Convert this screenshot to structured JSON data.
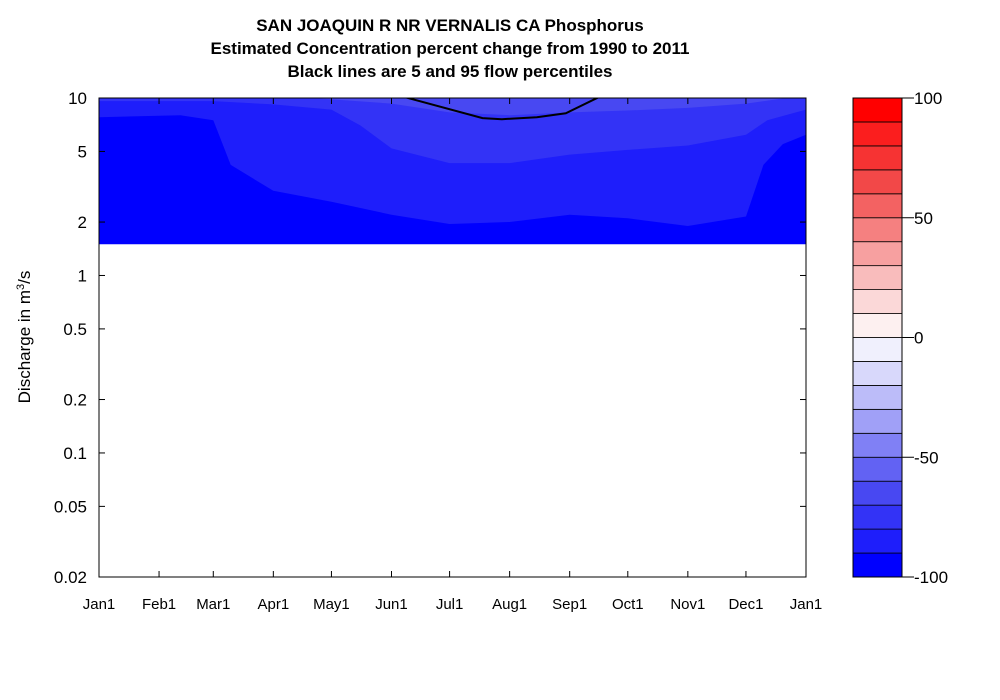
{
  "chart_data": {
    "type": "heatmap",
    "title": "SAN JOAQUIN R NR VERNALIS CA  Phosphorus",
    "subtitle": "Estimated Concentration percent change from 1990 to 2011",
    "subtitle2": "Black lines are 5 and 95 flow percentiles",
    "ylabel_prefix": "Discharge in m",
    "ylabel_sup": "3",
    "ylabel_suffix": "/s",
    "y_scale": "log",
    "ylim": [
      0.02,
      10
    ],
    "y_ticks": [
      {
        "value": 10,
        "label": "10"
      },
      {
        "value": 5,
        "label": "5"
      },
      {
        "value": 2,
        "label": "2"
      },
      {
        "value": 1,
        "label": "1"
      },
      {
        "value": 0.5,
        "label": "0.5"
      },
      {
        "value": 0.2,
        "label": "0.2"
      },
      {
        "value": 0.1,
        "label": "0.1"
      },
      {
        "value": 0.05,
        "label": "0.05"
      },
      {
        "value": 0.02,
        "label": "0.02"
      }
    ],
    "x_ticks": [
      "Jan1",
      "Feb1",
      "Mar1",
      "Apr1",
      "May1",
      "Jun1",
      "Jul1",
      "Aug1",
      "Sep1",
      "Oct1",
      "Nov1",
      "Dec1",
      "Jan1"
    ],
    "x_tick_days": [
      0,
      31,
      59,
      90,
      120,
      151,
      181,
      212,
      243,
      273,
      304,
      334,
      365
    ],
    "data_floor": 1.5,
    "color_levels": [
      {
        "min": -100,
        "max": -90,
        "color": "#0000ff"
      },
      {
        "min": -90,
        "max": -80,
        "color": "#1e1efb"
      },
      {
        "min": -80,
        "max": -70,
        "color": "#3333f6"
      },
      {
        "min": -70,
        "max": -60,
        "color": "#4848f2"
      },
      {
        "min": -60,
        "max": -50,
        "color": "#6262f3"
      },
      {
        "min": -50,
        "max": -40,
        "color": "#8080f5"
      },
      {
        "min": -40,
        "max": -30,
        "color": "#a0a0f7"
      },
      {
        "min": -30,
        "max": -20,
        "color": "#bcbcf9"
      },
      {
        "min": -20,
        "max": -10,
        "color": "#d8d8fb"
      },
      {
        "min": -10,
        "max": 0,
        "color": "#f0f0fd"
      },
      {
        "min": 0,
        "max": 10,
        "color": "#fdf0f0"
      },
      {
        "min": 10,
        "max": 20,
        "color": "#fbd8d8"
      },
      {
        "min": 20,
        "max": 30,
        "color": "#f9bcbc"
      },
      {
        "min": 30,
        "max": 40,
        "color": "#f7a0a0"
      },
      {
        "min": 40,
        "max": 50,
        "color": "#f58080"
      },
      {
        "min": 50,
        "max": 60,
        "color": "#f36262"
      },
      {
        "min": 60,
        "max": 70,
        "color": "#f24848"
      },
      {
        "min": 70,
        "max": 80,
        "color": "#f63333"
      },
      {
        "min": 80,
        "max": 90,
        "color": "#fb1e1e"
      },
      {
        "min": 90,
        "max": 100,
        "color": "#ff0000"
      }
    ],
    "colorbar_ticks": [
      100,
      50,
      0,
      -50,
      -100
    ],
    "contour_regions": [
      {
        "level": -95,
        "x": [
          0,
          365
        ],
        "lower": [
          1.5,
          1.5
        ],
        "upper": [
          10,
          10
        ]
      },
      {
        "level": -85,
        "x": [
          0,
          42,
          59,
          68,
          90,
          120,
          151,
          181,
          212,
          243,
          273,
          304,
          334,
          343,
          353,
          365
        ],
        "lower": [
          7.8,
          8.0,
          7.5,
          4.2,
          3.0,
          2.6,
          2.2,
          1.95,
          2.0,
          2.2,
          2.1,
          1.9,
          2.15,
          4.2,
          5.5,
          6.2
        ],
        "upper": [
          10,
          10,
          10,
          10,
          10,
          10,
          10,
          10,
          10,
          10,
          10,
          10,
          10,
          10,
          10,
          10
        ]
      },
      {
        "level": -75,
        "x": [
          0,
          59,
          90,
          120,
          135,
          151,
          181,
          212,
          243,
          273,
          304,
          334,
          345,
          365
        ],
        "lower": [
          9.6,
          9.6,
          9.2,
          8.6,
          7.0,
          5.2,
          4.3,
          4.3,
          4.8,
          5.1,
          5.4,
          6.2,
          7.5,
          8.6
        ],
        "upper": [
          10,
          10,
          10,
          10,
          10,
          10,
          10,
          10,
          10,
          10,
          10,
          10,
          10,
          10
        ]
      },
      {
        "level": -65,
        "x": [
          110,
          151,
          181,
          212,
          243,
          273,
          304,
          334,
          355
        ],
        "lower": [
          10,
          9.3,
          8.3,
          8.0,
          8.3,
          8.5,
          8.8,
          9.3,
          10
        ],
        "upper": [
          10,
          10,
          10,
          10,
          10,
          10,
          10,
          10,
          10
        ]
      }
    ],
    "percentile_lines": [
      {
        "name": "95 flow percentile",
        "x": [
          158,
          198,
          208,
          226,
          241,
          258
        ],
        "y": [
          10.1,
          7.7,
          7.6,
          7.8,
          8.2,
          10.1
        ]
      }
    ]
  }
}
